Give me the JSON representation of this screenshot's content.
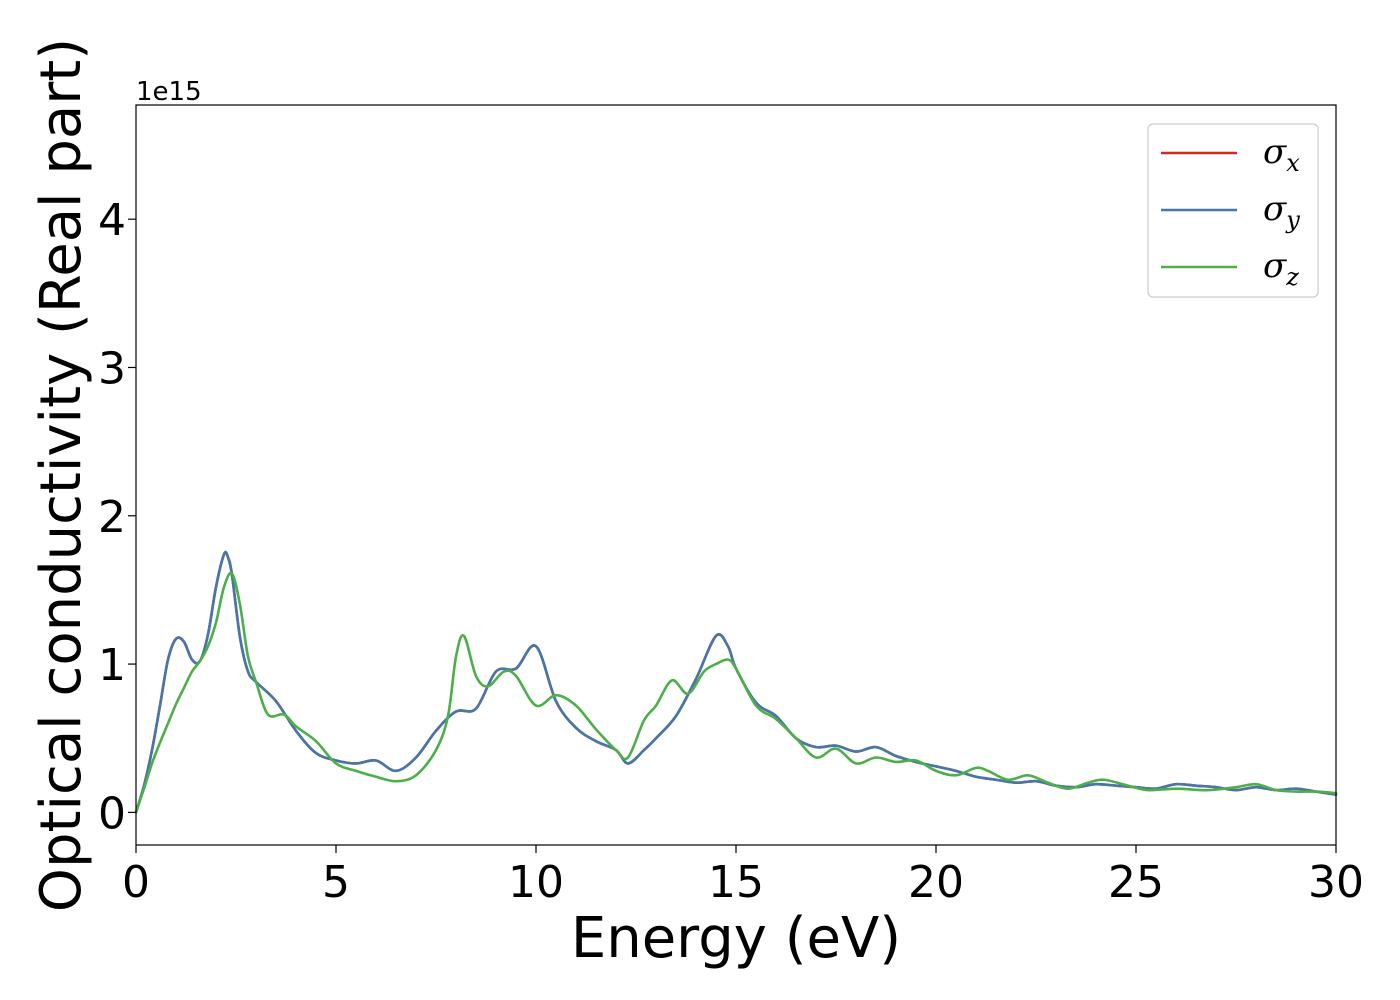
{
  "chart_data": {
    "type": "line",
    "title": "",
    "xlabel": "Energy (eV)",
    "ylabel": "Optical conductivity (Real part)",
    "y_offset_label": "1e15",
    "xlim": [
      0,
      30
    ],
    "ylim": [
      -0.22,
      4.77
    ],
    "y_scale": 1000000000000000.0,
    "xticks": [
      0,
      5,
      10,
      15,
      20,
      25,
      30
    ],
    "yticks": [
      0,
      1,
      2,
      3,
      4
    ],
    "grid": false,
    "legend_position": "top-right",
    "legend": [
      {
        "symbol": "σ",
        "sub": "x",
        "color": "#d62728"
      },
      {
        "symbol": "σ",
        "sub": "y",
        "color": "#4477aa"
      },
      {
        "symbol": "σ",
        "sub": "z",
        "color": "#4daf4a"
      }
    ],
    "series": [
      {
        "name": "σx",
        "color": "#d62728",
        "x": [
          0,
          0.2,
          0.4,
          0.6,
          0.8,
          1.0,
          1.2,
          1.4,
          1.6,
          1.8,
          2.0,
          2.2,
          2.3,
          2.4,
          2.6,
          2.8,
          3.0,
          3.5,
          4.0,
          4.5,
          5.0,
          5.5,
          6.0,
          6.5,
          7.0,
          7.5,
          8.0,
          8.5,
          9.0,
          9.5,
          10.0,
          10.5,
          11.0,
          11.5,
          12.0,
          12.3,
          12.7,
          13.0,
          13.5,
          14.0,
          14.5,
          14.8,
          15.0,
          15.5,
          16.0,
          16.5,
          17.0,
          17.5,
          18.0,
          18.5,
          19.0,
          19.5,
          20.0,
          20.5,
          21.0,
          21.5,
          22.0,
          22.5,
          23.0,
          23.5,
          24.0,
          24.5,
          25.0,
          25.5,
          26.0,
          26.5,
          27.0,
          27.5,
          28.0,
          28.5,
          29.0,
          29.5,
          30.0
        ],
        "y": [
          0.0,
          0.18,
          0.42,
          0.72,
          1.03,
          1.17,
          1.15,
          1.03,
          1.02,
          1.2,
          1.52,
          1.74,
          1.72,
          1.6,
          1.18,
          0.95,
          0.88,
          0.75,
          0.55,
          0.4,
          0.35,
          0.33,
          0.35,
          0.28,
          0.37,
          0.55,
          0.68,
          0.7,
          0.95,
          0.97,
          1.12,
          0.75,
          0.57,
          0.48,
          0.42,
          0.33,
          0.42,
          0.5,
          0.65,
          0.9,
          1.19,
          1.12,
          0.97,
          0.74,
          0.65,
          0.5,
          0.44,
          0.45,
          0.41,
          0.44,
          0.38,
          0.34,
          0.31,
          0.28,
          0.24,
          0.22,
          0.2,
          0.21,
          0.18,
          0.17,
          0.19,
          0.18,
          0.17,
          0.16,
          0.19,
          0.18,
          0.17,
          0.15,
          0.17,
          0.15,
          0.16,
          0.14,
          0.12
        ]
      },
      {
        "name": "σy",
        "color": "#4477aa",
        "x": [
          0,
          0.2,
          0.4,
          0.6,
          0.8,
          1.0,
          1.2,
          1.4,
          1.6,
          1.8,
          2.0,
          2.2,
          2.3,
          2.4,
          2.6,
          2.8,
          3.0,
          3.5,
          4.0,
          4.5,
          5.0,
          5.5,
          6.0,
          6.5,
          7.0,
          7.5,
          8.0,
          8.5,
          9.0,
          9.5,
          10.0,
          10.5,
          11.0,
          11.5,
          12.0,
          12.3,
          12.7,
          13.0,
          13.5,
          14.0,
          14.5,
          14.8,
          15.0,
          15.5,
          16.0,
          16.5,
          17.0,
          17.5,
          18.0,
          18.5,
          19.0,
          19.5,
          20.0,
          20.5,
          21.0,
          21.5,
          22.0,
          22.5,
          23.0,
          23.5,
          24.0,
          24.5,
          25.0,
          25.5,
          26.0,
          26.5,
          27.0,
          27.5,
          28.0,
          28.5,
          29.0,
          29.5,
          30.0
        ],
        "y": [
          0.0,
          0.18,
          0.42,
          0.72,
          1.03,
          1.17,
          1.15,
          1.03,
          1.02,
          1.2,
          1.52,
          1.74,
          1.72,
          1.6,
          1.18,
          0.95,
          0.88,
          0.75,
          0.55,
          0.4,
          0.35,
          0.33,
          0.35,
          0.28,
          0.37,
          0.55,
          0.68,
          0.7,
          0.95,
          0.97,
          1.12,
          0.75,
          0.57,
          0.48,
          0.42,
          0.33,
          0.42,
          0.5,
          0.65,
          0.9,
          1.19,
          1.12,
          0.97,
          0.74,
          0.65,
          0.5,
          0.44,
          0.45,
          0.41,
          0.44,
          0.38,
          0.34,
          0.31,
          0.28,
          0.24,
          0.22,
          0.2,
          0.21,
          0.18,
          0.17,
          0.19,
          0.18,
          0.17,
          0.16,
          0.19,
          0.18,
          0.17,
          0.15,
          0.17,
          0.15,
          0.16,
          0.14,
          0.12
        ]
      },
      {
        "name": "σz",
        "color": "#4daf4a",
        "x": [
          0,
          0.2,
          0.4,
          0.6,
          0.8,
          1.0,
          1.2,
          1.4,
          1.6,
          1.8,
          2.0,
          2.2,
          2.4,
          2.6,
          2.8,
          3.0,
          3.3,
          3.7,
          4.0,
          4.5,
          5.0,
          5.5,
          6.0,
          6.5,
          7.0,
          7.5,
          7.8,
          8.0,
          8.2,
          8.5,
          8.8,
          9.2,
          9.5,
          10.0,
          10.5,
          11.0,
          11.5,
          12.0,
          12.3,
          12.7,
          13.0,
          13.4,
          13.8,
          14.2,
          14.5,
          14.8,
          15.0,
          15.5,
          16.0,
          16.5,
          17.0,
          17.5,
          18.0,
          18.5,
          19.0,
          19.5,
          20.0,
          20.5,
          21.0,
          21.3,
          21.8,
          22.3,
          22.8,
          23.3,
          23.8,
          24.2,
          24.8,
          25.3,
          26.0,
          26.8,
          27.5,
          28.0,
          28.5,
          29.0,
          29.5,
          30.0
        ],
        "y": [
          0.0,
          0.16,
          0.33,
          0.47,
          0.6,
          0.73,
          0.84,
          0.95,
          1.02,
          1.12,
          1.28,
          1.52,
          1.61,
          1.4,
          1.05,
          0.88,
          0.66,
          0.66,
          0.58,
          0.48,
          0.33,
          0.28,
          0.24,
          0.21,
          0.25,
          0.42,
          0.65,
          1.05,
          1.19,
          0.92,
          0.85,
          0.95,
          0.92,
          0.72,
          0.79,
          0.72,
          0.56,
          0.42,
          0.37,
          0.62,
          0.72,
          0.89,
          0.8,
          0.95,
          1.0,
          1.03,
          0.97,
          0.72,
          0.63,
          0.5,
          0.37,
          0.43,
          0.33,
          0.37,
          0.34,
          0.35,
          0.28,
          0.25,
          0.3,
          0.28,
          0.22,
          0.25,
          0.2,
          0.16,
          0.2,
          0.22,
          0.18,
          0.15,
          0.16,
          0.15,
          0.17,
          0.19,
          0.15,
          0.14,
          0.14,
          0.13
        ]
      }
    ]
  }
}
